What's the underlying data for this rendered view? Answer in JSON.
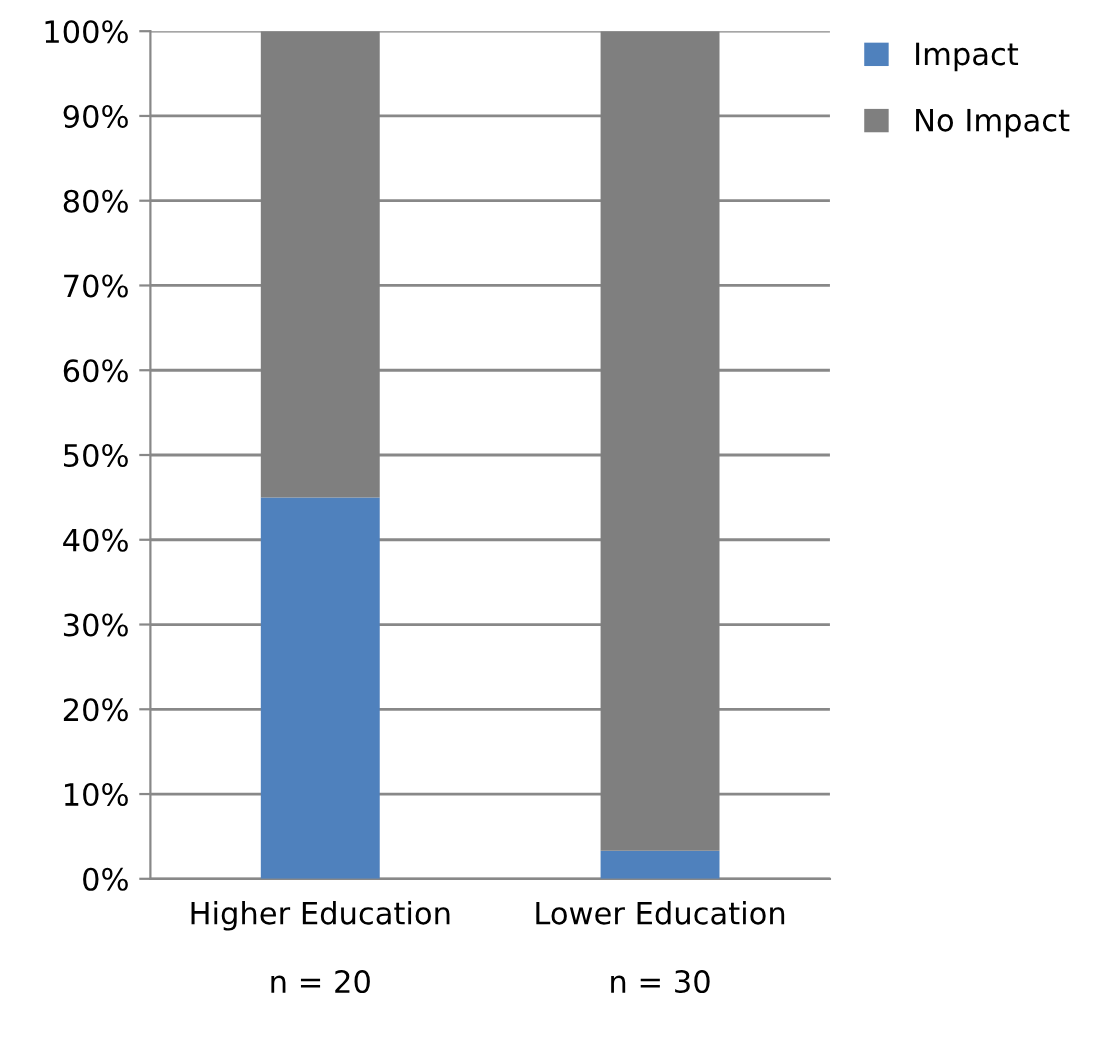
{
  "chart_data": {
    "type": "bar",
    "stacked": true,
    "categories": [
      "Higher Education\n\nn = 20",
      "Lower Education\n\nn = 30"
    ],
    "series": [
      {
        "name": "Impact",
        "color": "#4f81bd",
        "values": [
          45,
          3.3
        ]
      },
      {
        "name": "No Impact",
        "color": "#7f7f7f",
        "values": [
          55,
          96.7
        ]
      }
    ],
    "ylim": [
      0,
      100
    ],
    "yticks": [
      {
        "value": 0,
        "label": "0%"
      },
      {
        "value": 10,
        "label": "10%"
      },
      {
        "value": 20,
        "label": "20%"
      },
      {
        "value": 30,
        "label": "30%"
      },
      {
        "value": 40,
        "label": "40%"
      },
      {
        "value": 50,
        "label": "50%"
      },
      {
        "value": 60,
        "label": "60%"
      },
      {
        "value": 70,
        "label": "70%"
      },
      {
        "value": 80,
        "label": "80%"
      },
      {
        "value": 90,
        "label": "90%"
      },
      {
        "value": 100,
        "label": "100%"
      }
    ],
    "grid": "y",
    "legend": "top right"
  }
}
